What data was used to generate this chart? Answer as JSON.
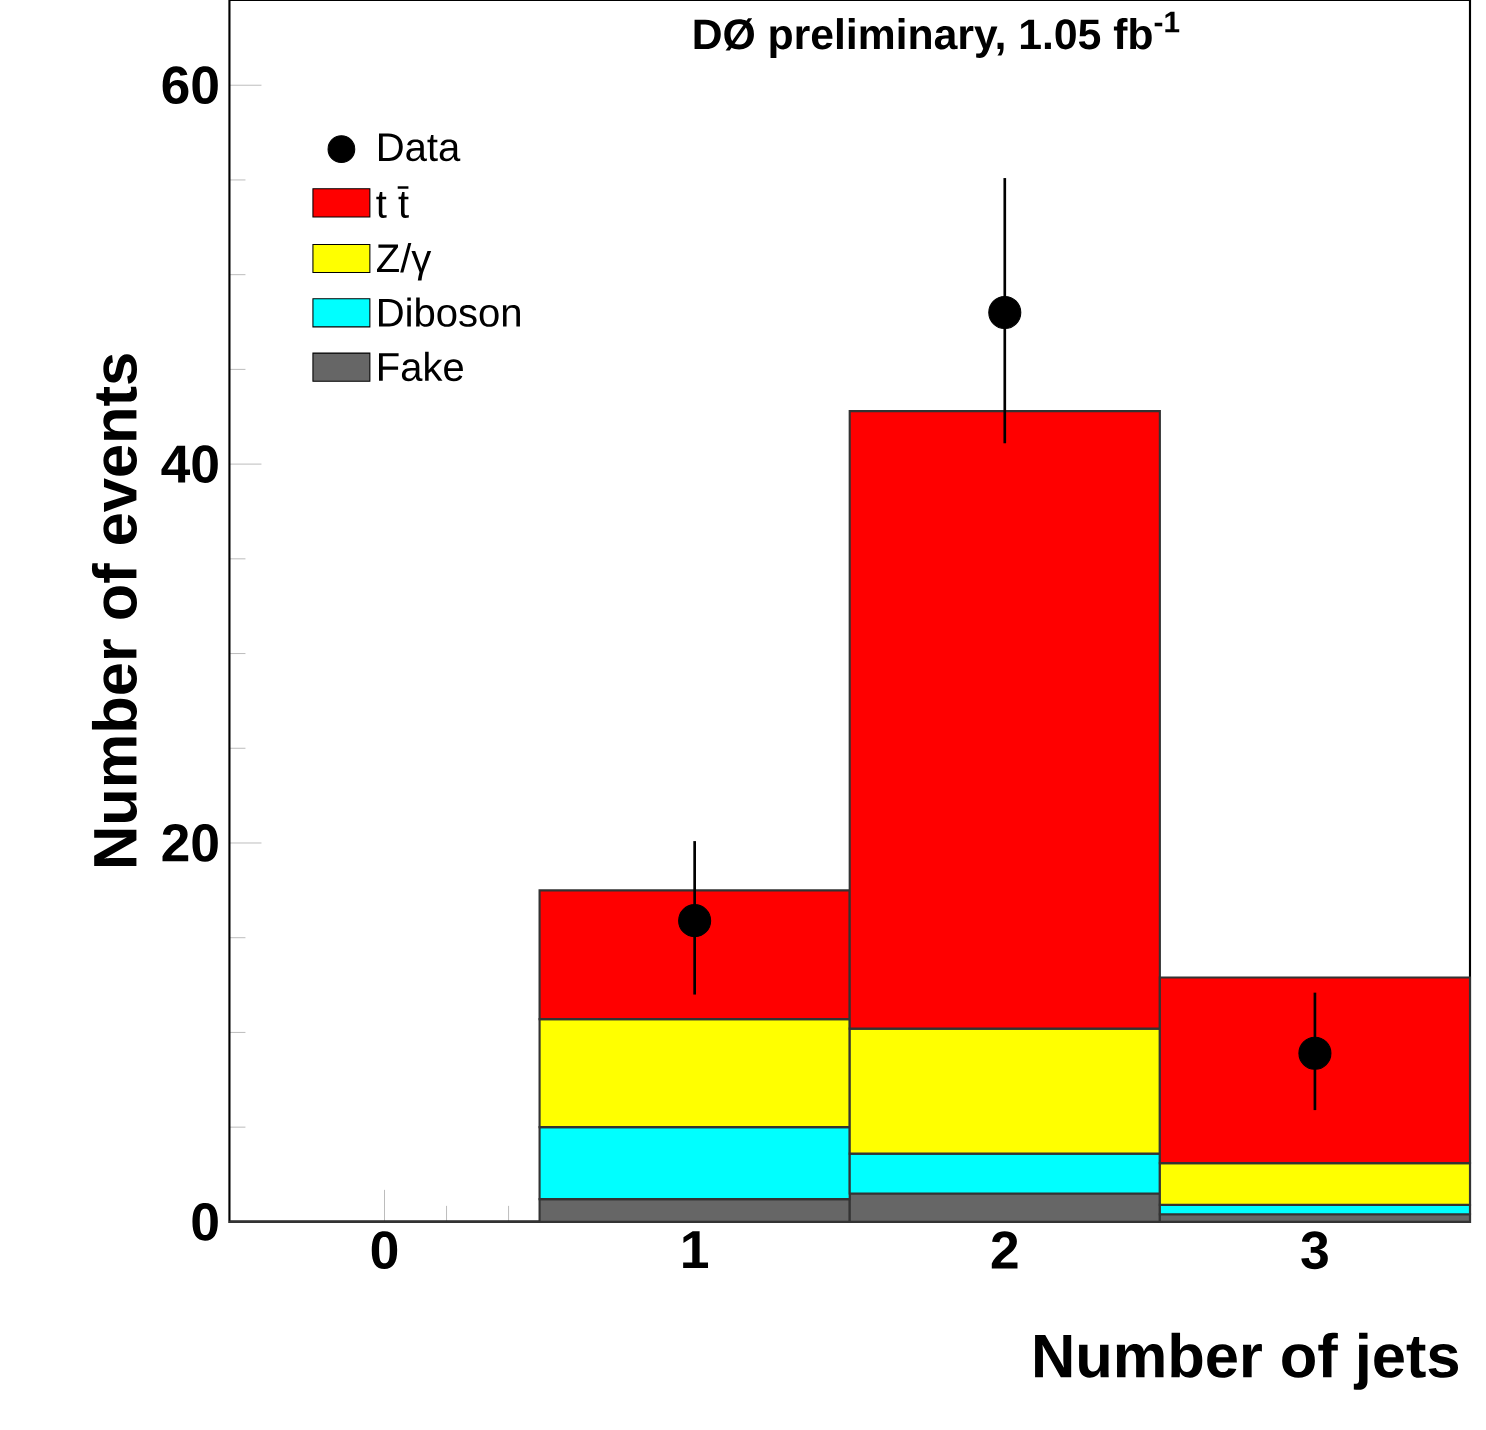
{
  "chart_data": {
    "type": "bar",
    "stacked": true,
    "title": "DØ preliminary, 1.05 fb$^{-1}$",
    "xlabel": "Number of jets",
    "ylabel": "Number of events",
    "categories": [
      "0",
      "1",
      "2",
      "3"
    ],
    "series": [
      {
        "name": "Fake",
        "color": "#666666",
        "values": [
          0,
          1.2,
          1.5,
          0.4
        ]
      },
      {
        "name": "Diboson",
        "color": "#00ffff",
        "values": [
          0,
          3.8,
          2.1,
          0.5
        ]
      },
      {
        "name": "Z/γ",
        "color": "#ffff00",
        "values": [
          0,
          5.7,
          6.6,
          2.2
        ]
      },
      {
        "name": "t t̄",
        "color": "#ff0000",
        "values": [
          0,
          6.8,
          32.6,
          9.8
        ]
      },
      {
        "name": "Data",
        "type": "scatter",
        "color": "#000000",
        "marker": "circle",
        "x": [
          "1",
          "2",
          "3"
        ],
        "values": [
          15.9,
          48.0,
          8.9
        ],
        "errors": [
          [
            12.0,
            20.1
          ],
          [
            41.1,
            55.1
          ],
          [
            5.9,
            12.1
          ]
        ]
      }
    ],
    "ylim": [
      0,
      64.5
    ],
    "yticks": [
      0,
      20,
      40,
      60
    ],
    "legend": "top left"
  }
}
